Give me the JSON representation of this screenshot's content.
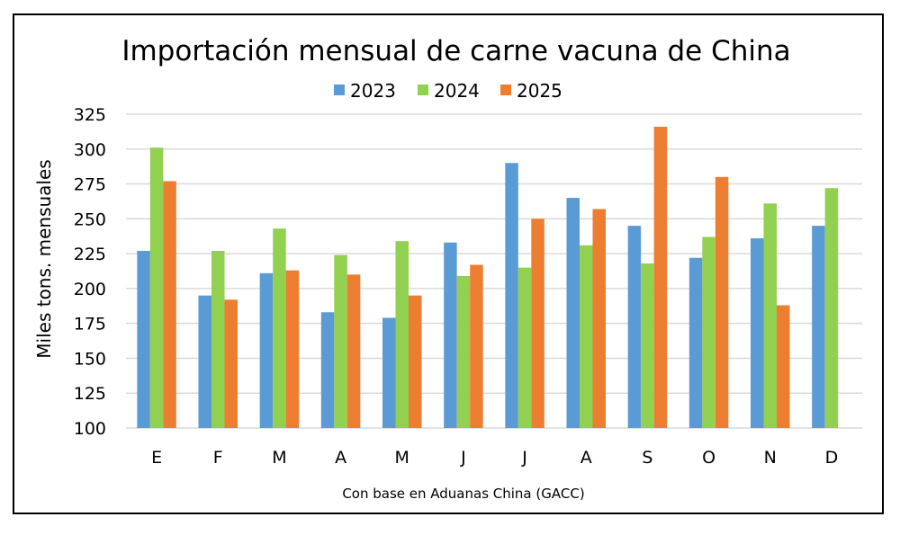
{
  "chart_data": {
    "type": "bar",
    "title": "Importación mensual de carne vacuna de China",
    "xlabel": "Con base en Aduanas China (GACC)",
    "ylabel": "Miles tons. mensuales",
    "ylim": [
      100,
      325
    ],
    "yticks": [
      100,
      125,
      150,
      175,
      200,
      225,
      250,
      275,
      300,
      325
    ],
    "grid": true,
    "legend_position": "top-center",
    "categories": [
      "E",
      "F",
      "M",
      "A",
      "M",
      "J",
      "J",
      "A",
      "S",
      "O",
      "N",
      "D"
    ],
    "series": [
      {
        "name": "2023",
        "color": "#5b9bd5",
        "values": [
          227,
          195,
          211,
          183,
          179,
          233,
          290,
          265,
          245,
          222,
          236,
          245
        ]
      },
      {
        "name": "2024",
        "color": "#92d050",
        "values": [
          301,
          227,
          243,
          224,
          234,
          209,
          215,
          231,
          218,
          237,
          261,
          272
        ]
      },
      {
        "name": "2025",
        "color": "#ed7d31",
        "values": [
          277,
          192,
          213,
          210,
          195,
          217,
          250,
          257,
          316,
          280,
          188,
          null
        ]
      }
    ]
  }
}
